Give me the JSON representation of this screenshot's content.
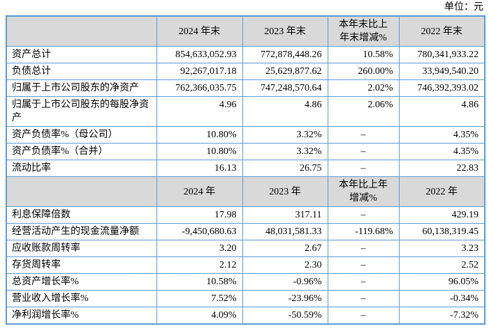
{
  "unit_label": "单位：元",
  "colors": {
    "border_blue": "#5B9BD5",
    "header_gray": "#D9D9D9"
  },
  "table": {
    "sections": [
      {
        "column_headers": [
          "2024 年末",
          "2023 年末",
          "本年末比上年末增减%",
          "2022 年末"
        ],
        "rows": [
          {
            "label": "资产总计",
            "values": [
              "854,633,052.93",
              "772,878,448.26",
              "10.58%",
              "780,341,933.22"
            ]
          },
          {
            "label": "负债总计",
            "values": [
              "92,267,017.18",
              "25,629,877.62",
              "260.00%",
              "33,949,540.20"
            ]
          },
          {
            "label": "归属于上市公司股东的净资产",
            "values": [
              "762,366,035.75",
              "747,248,570.64",
              "2.02%",
              "746,392,393.02"
            ]
          },
          {
            "label": "归属于上市公司股东的每股净资产",
            "values": [
              "4.96",
              "4.86",
              "2.06%",
              "4.86"
            ]
          },
          {
            "label": "资产负债率%（母公司）",
            "values": [
              "10.80%",
              "3.32%",
              "–",
              "4.35%"
            ]
          },
          {
            "label": "资产负债率%（合并）",
            "values": [
              "10.80%",
              "3.32%",
              "–",
              "4.35%"
            ]
          },
          {
            "label": "流动比率",
            "values": [
              "16.13",
              "26.75",
              "–",
              "22.83"
            ]
          }
        ]
      },
      {
        "column_headers": [
          "2024 年",
          "2023 年",
          "本年比上年增减%",
          "2022 年"
        ],
        "rows": [
          {
            "label": "利息保障倍数",
            "values": [
              "17.98",
              "317.11",
              "–",
              "429.19"
            ]
          },
          {
            "label": "经营活动产生的现金流量净额",
            "values": [
              "-9,450,680.63",
              "48,031,581.33",
              "-119.68%",
              "60,138,319.45"
            ]
          },
          {
            "label": "应收账款周转率",
            "values": [
              "3.20",
              "2.67",
              "–",
              "3.23"
            ]
          },
          {
            "label": "存货周转率",
            "values": [
              "2.12",
              "2.30",
              "–",
              "2.52"
            ]
          },
          {
            "label": "总资产增长率%",
            "values": [
              "10.58%",
              "-0.96%",
              "–",
              "96.05%"
            ]
          },
          {
            "label": "营业收入增长率%",
            "values": [
              "7.52%",
              "-23.96%",
              "–",
              "-0.34%"
            ]
          },
          {
            "label": "净利润增长率%",
            "values": [
              "4.09%",
              "-50.59%",
              "–",
              "-7.32%"
            ]
          }
        ]
      }
    ]
  }
}
